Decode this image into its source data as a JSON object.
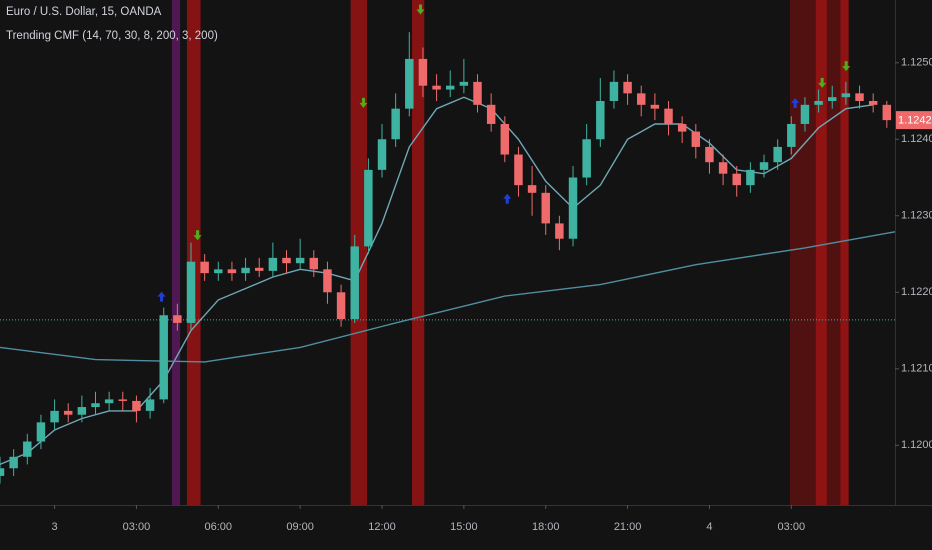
{
  "chart_data": {
    "type": "candlestick",
    "title": "Euro / U.S. Dollar, 15, OANDA",
    "subtitle": "Trending CMF (14, 70, 30, 8, 200, 3, 200)",
    "up_color": "#3fb3a2",
    "down_color": "#ef6b6b",
    "x": [
      -2,
      -1.5,
      -1,
      -0.5,
      0,
      0.5,
      1,
      1.5,
      2,
      2.5,
      3,
      3.5,
      4,
      4.5,
      5,
      5.5,
      6,
      6.5,
      7,
      7.5,
      8,
      8.5,
      9,
      9.5,
      10,
      10.5,
      11,
      11.5,
      12,
      12.5,
      13,
      13.5,
      14,
      14.5,
      15,
      15.5,
      16,
      16.5,
      17,
      17.5,
      18,
      18.5,
      19,
      19.5,
      20,
      20.5,
      21,
      21.5,
      22,
      22.5,
      23,
      23.5,
      24,
      24.5,
      25,
      25.5,
      26,
      26.5,
      27,
      27.5,
      28,
      28.5,
      29,
      29.5,
      30,
      30.5
    ],
    "open": [
      1.1196,
      1.1197,
      1.11985,
      1.12005,
      1.1203,
      1.12045,
      1.1204,
      1.1205,
      1.12055,
      1.1206,
      1.12058,
      1.12045,
      1.1206,
      1.1217,
      1.1216,
      1.1224,
      1.12225,
      1.1223,
      1.12225,
      1.12232,
      1.12228,
      1.12245,
      1.12238,
      1.12245,
      1.1223,
      1.122,
      1.12165,
      1.1226,
      1.1236,
      1.124,
      1.1244,
      1.12505,
      1.1247,
      1.12465,
      1.1247,
      1.12475,
      1.12445,
      1.1242,
      1.1238,
      1.1234,
      1.1233,
      1.1229,
      1.1227,
      1.1235,
      1.124,
      1.1245,
      1.12475,
      1.1246,
      1.12445,
      1.1244,
      1.1242,
      1.1241,
      1.1239,
      1.1237,
      1.12355,
      1.1234,
      1.1236,
      1.1237,
      1.1239,
      1.1242,
      1.12445,
      1.1245,
      1.12455,
      1.1246,
      1.1245,
      1.12445
    ],
    "high": [
      1.11985,
      1.11995,
      1.12015,
      1.1204,
      1.1206,
      1.12055,
      1.12065,
      1.1207,
      1.1207,
      1.1207,
      1.12065,
      1.12075,
      1.1218,
      1.12185,
      1.12265,
      1.1225,
      1.1224,
      1.1224,
      1.12245,
      1.12245,
      1.12265,
      1.12255,
      1.1227,
      1.12255,
      1.1224,
      1.1221,
      1.12275,
      1.12375,
      1.1242,
      1.1246,
      1.1254,
      1.1252,
      1.12485,
      1.1249,
      1.12505,
      1.12485,
      1.1246,
      1.1243,
      1.1239,
      1.12365,
      1.1234,
      1.123,
      1.12365,
      1.1242,
      1.1248,
      1.1249,
      1.12485,
      1.1247,
      1.1246,
      1.1245,
      1.1243,
      1.1242,
      1.124,
      1.1238,
      1.12365,
      1.1237,
      1.1238,
      1.124,
      1.1243,
      1.12455,
      1.12465,
      1.1247,
      1.12475,
      1.1247,
      1.1246,
      1.1245
    ],
    "low": [
      1.1195,
      1.1196,
      1.11975,
      1.11995,
      1.1202,
      1.1203,
      1.1203,
      1.1204,
      1.12045,
      1.12045,
      1.1203,
      1.12035,
      1.12055,
      1.1215,
      1.1215,
      1.12215,
      1.12215,
      1.12215,
      1.12215,
      1.1222,
      1.1222,
      1.12225,
      1.1223,
      1.1222,
      1.12185,
      1.12155,
      1.1216,
      1.1225,
      1.1235,
      1.1239,
      1.1243,
      1.12455,
      1.1245,
      1.12455,
      1.1246,
      1.12435,
      1.1241,
      1.1237,
      1.12325,
      1.123,
      1.12275,
      1.12255,
      1.1226,
      1.1234,
      1.1239,
      1.1244,
      1.12445,
      1.1243,
      1.12425,
      1.12405,
      1.12395,
      1.12375,
      1.12355,
      1.1234,
      1.12325,
      1.1233,
      1.1235,
      1.1236,
      1.1238,
      1.1241,
      1.12435,
      1.1244,
      1.12445,
      1.1244,
      1.12435,
      1.12415
    ],
    "close": [
      1.1197,
      1.11985,
      1.12005,
      1.1203,
      1.12045,
      1.1204,
      1.1205,
      1.12055,
      1.1206,
      1.12058,
      1.12045,
      1.1206,
      1.1217,
      1.1216,
      1.1224,
      1.12225,
      1.1223,
      1.12225,
      1.12232,
      1.12228,
      1.12245,
      1.12238,
      1.12245,
      1.1223,
      1.122,
      1.12165,
      1.1226,
      1.1236,
      1.124,
      1.1244,
      1.12505,
      1.1247,
      1.12465,
      1.1247,
      1.12475,
      1.12445,
      1.1242,
      1.1238,
      1.1234,
      1.1233,
      1.1229,
      1.1227,
      1.1235,
      1.124,
      1.1245,
      1.12475,
      1.1246,
      1.12445,
      1.1244,
      1.1242,
      1.1241,
      1.1239,
      1.1237,
      1.12355,
      1.1234,
      1.1236,
      1.1237,
      1.1239,
      1.1242,
      1.12445,
      1.1245,
      1.12455,
      1.1246,
      1.1245,
      1.12445,
      1.12425
    ],
    "lines": [
      {
        "color": "#6fa8b8",
        "x": [
          -2,
          -1,
          0,
          1,
          2,
          3,
          4,
          5,
          6,
          7,
          8,
          9,
          10,
          11,
          12,
          13,
          14,
          15,
          16,
          17,
          18,
          19,
          20,
          21,
          22,
          23,
          24,
          25,
          26,
          27,
          28,
          29,
          30
        ],
        "values": [
          1.11975,
          1.1199,
          1.1202,
          1.12035,
          1.12045,
          1.12045,
          1.12085,
          1.1215,
          1.1219,
          1.12205,
          1.1222,
          1.1223,
          1.12225,
          1.12215,
          1.1229,
          1.1239,
          1.1244,
          1.12455,
          1.1244,
          1.124,
          1.12345,
          1.1231,
          1.1234,
          1.124,
          1.1242,
          1.1242,
          1.12395,
          1.1236,
          1.12355,
          1.12375,
          1.12415,
          1.1244,
          1.12445
        ]
      },
      {
        "color": "#4f8fa0",
        "x": [
          -2,
          1.5,
          5.5,
          9,
          12.5,
          16.5,
          20,
          23.5,
          27.5,
          30.8
        ],
        "values": [
          1.12128,
          1.12112,
          1.12109,
          1.12128,
          1.1216,
          1.12195,
          1.1221,
          1.12236,
          1.12258,
          1.12279
        ]
      }
    ],
    "bands": [
      {
        "x": [
          4.3,
          4.6
        ],
        "color": "#5b1a5e"
      },
      {
        "x": [
          4.85,
          5.35
        ],
        "color": "#9a1414"
      },
      {
        "x": [
          10.85,
          11.45
        ],
        "color": "#9a1414"
      },
      {
        "x": [
          13.1,
          13.55
        ],
        "color": "#9a1414"
      },
      {
        "x": [
          26.95,
          29.1
        ],
        "color": "#5e1212"
      },
      {
        "x": [
          27.9,
          28.3
        ],
        "color": "#9a1414"
      },
      {
        "x": [
          28.8,
          29.1
        ],
        "color": "#9a1414"
      }
    ],
    "signals_down": {
      "color": "#4caf1a",
      "x": [
        5.24,
        11.32,
        13.41,
        28.13,
        29.01
      ],
      "values": [
        1.12272,
        1.12445,
        1.12567,
        1.12471,
        1.12493
      ]
    },
    "signals_up": {
      "color": "#1f3fd6",
      "x": [
        3.92,
        16.59,
        27.14
      ],
      "values": [
        1.12193,
        1.12321,
        1.12446
      ]
    },
    "hline": 1.12164,
    "hline_color": "#3fb3a2",
    "xlim": [
      -2,
      30.8
    ],
    "xticks": [
      {
        "value": 0,
        "label": "3"
      },
      {
        "value": 3,
        "label": "03:00"
      },
      {
        "value": 6,
        "label": "06:00"
      },
      {
        "value": 9,
        "label": "09:00"
      },
      {
        "value": 12,
        "label": "12:00"
      },
      {
        "value": 15,
        "label": "15:00"
      },
      {
        "value": 18,
        "label": "18:00"
      },
      {
        "value": 21,
        "label": "21:00"
      },
      {
        "value": 24,
        "label": "4"
      },
      {
        "value": 27,
        "label": "03:00"
      }
    ],
    "ylim": [
      1.11922,
      1.12582
    ],
    "yticks": [
      {
        "value": 1.12,
        "label": "1.12000"
      },
      {
        "value": 1.121,
        "label": "1.12100"
      },
      {
        "value": 1.122,
        "label": "1.12200"
      },
      {
        "value": 1.123,
        "label": "1.12300"
      },
      {
        "value": 1.124,
        "label": "1.12400"
      },
      {
        "value": 1.125,
        "label": "1.12500"
      }
    ]
  }
}
